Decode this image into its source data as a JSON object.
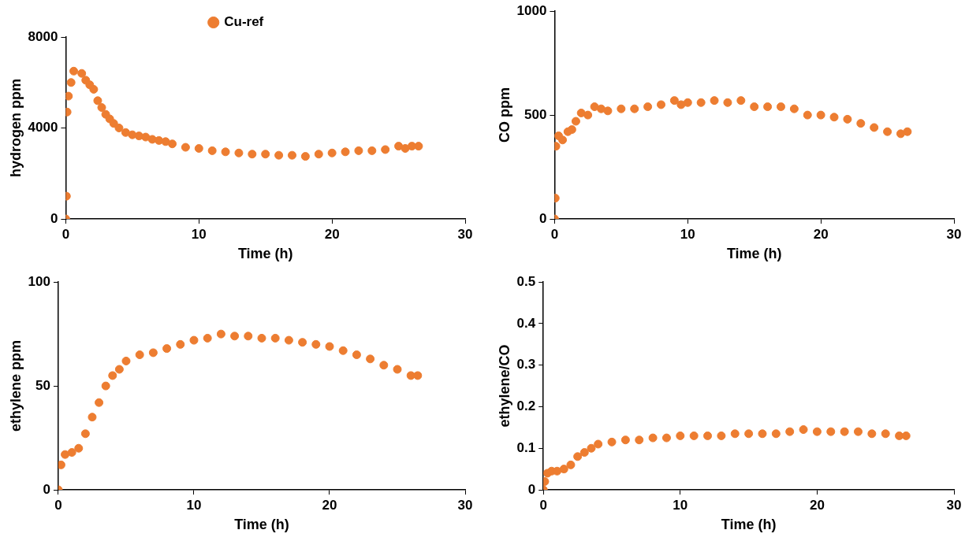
{
  "chart_data": [
    {
      "type": "scatter",
      "xlabel": "Time (h)",
      "ylabel": "hydrogen ppm",
      "xlim": [
        0,
        30
      ],
      "xticks": [
        0,
        10,
        20,
        30
      ],
      "ylim": [
        0,
        8000
      ],
      "yticks": [
        0,
        4000,
        8000
      ],
      "grid": false,
      "legend": "top",
      "marker": "circle",
      "series": [
        {
          "name": "Cu-ref",
          "color": "#ed7d31",
          "x": [
            0,
            0.05,
            0.1,
            0.2,
            0.4,
            0.6,
            1.2,
            1.5,
            1.8,
            2.1,
            2.4,
            2.7,
            3.0,
            3.3,
            3.6,
            4.0,
            4.5,
            5,
            5.5,
            6,
            6.5,
            7,
            7.5,
            8,
            9,
            10,
            11,
            12,
            13,
            14,
            15,
            16,
            17,
            18,
            19,
            20,
            21,
            22,
            23,
            24,
            25,
            25.5,
            26,
            26.5
          ],
          "values": [
            0,
            1000,
            4700,
            5400,
            6000,
            6500,
            6400,
            6100,
            5900,
            5700,
            5200,
            4900,
            4600,
            4400,
            4200,
            4000,
            3800,
            3700,
            3650,
            3600,
            3500,
            3450,
            3400,
            3300,
            3150,
            3100,
            3000,
            2950,
            2900,
            2850,
            2850,
            2800,
            2800,
            2750,
            2850,
            2900,
            2950,
            3000,
            3000,
            3050,
            3200,
            3100,
            3200,
            3200
          ]
        }
      ]
    },
    {
      "type": "scatter",
      "xlabel": "Time (h)",
      "ylabel": "CO ppm",
      "xlim": [
        0,
        30
      ],
      "xticks": [
        0,
        10,
        20,
        30
      ],
      "ylim": [
        0,
        1000
      ],
      "yticks": [
        0,
        500,
        1000
      ],
      "grid": false,
      "marker": "circle",
      "series": [
        {
          "color": "#ed7d31",
          "x": [
            0,
            0.05,
            0.1,
            0.3,
            0.6,
            1,
            1.3,
            1.6,
            2,
            2.5,
            3,
            3.5,
            4,
            5,
            6,
            7,
            8,
            9,
            9.5,
            10,
            11,
            12,
            13,
            14,
            15,
            16,
            17,
            18,
            19,
            20,
            21,
            22,
            23,
            24,
            25,
            26,
            26.5
          ],
          "values": [
            0,
            100,
            350,
            400,
            380,
            420,
            430,
            470,
            510,
            500,
            540,
            530,
            520,
            530,
            530,
            540,
            550,
            570,
            550,
            560,
            560,
            570,
            560,
            570,
            540,
            540,
            540,
            530,
            500,
            500,
            490,
            480,
            460,
            440,
            420,
            410,
            420
          ]
        }
      ]
    },
    {
      "type": "scatter",
      "xlabel": "Time (h)",
      "ylabel": "ethylene ppm",
      "xlim": [
        0,
        30
      ],
      "xticks": [
        0,
        10,
        20,
        30
      ],
      "ylim": [
        0,
        100
      ],
      "yticks": [
        0,
        50,
        100
      ],
      "grid": false,
      "marker": "circle",
      "series": [
        {
          "color": "#ed7d31",
          "x": [
            0,
            0.2,
            0.5,
            1,
            1.5,
            2,
            2.5,
            3,
            3.5,
            4,
            4.5,
            5,
            6,
            7,
            8,
            9,
            10,
            11,
            12,
            13,
            14,
            15,
            16,
            17,
            18,
            19,
            20,
            21,
            22,
            23,
            24,
            25,
            26,
            26.5
          ],
          "values": [
            0,
            12,
            17,
            18,
            20,
            27,
            35,
            42,
            50,
            55,
            58,
            62,
            65,
            66,
            68,
            70,
            72,
            73,
            75,
            74,
            74,
            73,
            73,
            72,
            71,
            70,
            69,
            67,
            65,
            63,
            60,
            58,
            55,
            55
          ]
        }
      ]
    },
    {
      "type": "scatter",
      "xlabel": "Time (h)",
      "ylabel": "ethylene/CO",
      "xlim": [
        0,
        30
      ],
      "xticks": [
        0,
        10,
        20,
        30
      ],
      "ylim": [
        0,
        0.5
      ],
      "yticks": [
        0,
        0.1,
        0.2,
        0.3,
        0.4,
        0.5
      ],
      "grid": false,
      "marker": "circle",
      "series": [
        {
          "color": "#ed7d31",
          "x": [
            0,
            0.1,
            0.3,
            0.6,
            1,
            1.5,
            2,
            2.5,
            3,
            3.5,
            4,
            5,
            6,
            7,
            8,
            9,
            10,
            11,
            12,
            13,
            14,
            15,
            16,
            17,
            18,
            19,
            20,
            21,
            22,
            23,
            24,
            25,
            26,
            26.5
          ],
          "values": [
            0,
            0.02,
            0.04,
            0.045,
            0.045,
            0.05,
            0.06,
            0.08,
            0.09,
            0.1,
            0.11,
            0.115,
            0.12,
            0.12,
            0.125,
            0.125,
            0.13,
            0.13,
            0.13,
            0.13,
            0.135,
            0.135,
            0.135,
            0.135,
            0.14,
            0.145,
            0.14,
            0.14,
            0.14,
            0.14,
            0.135,
            0.135,
            0.13,
            0.13
          ]
        }
      ]
    }
  ]
}
